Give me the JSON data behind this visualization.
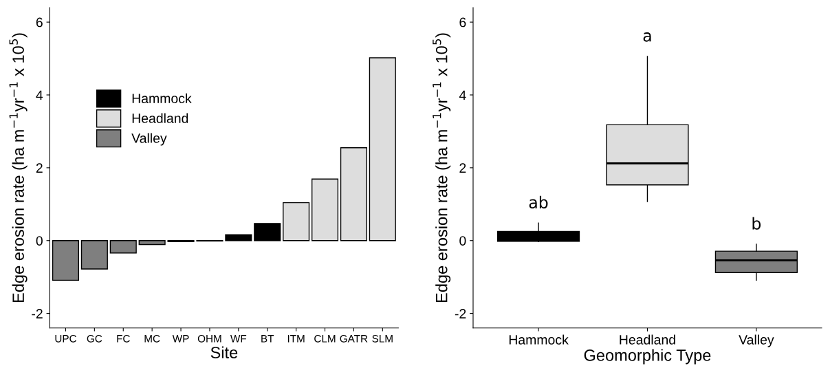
{
  "chart_data": [
    {
      "type": "bar",
      "xlabel": "Site",
      "ylabel": "Edge erosion rate (ha m$^{−1}$yr$^{−1}$ x 10$^{5}$)",
      "categories": [
        "UPC",
        "GC",
        "FC",
        "MC",
        "WP",
        "OHM",
        "WF",
        "BT",
        "ITM",
        "CLM",
        "GATR",
        "SLM"
      ],
      "series": [
        {
          "name": "Hammock",
          "color": "#000000",
          "values": [
            null,
            null,
            null,
            null,
            -0.03,
            -0.01,
            0.16,
            0.47,
            null,
            null,
            null,
            null
          ]
        },
        {
          "name": "Headland",
          "color": "#dddddd",
          "values": [
            null,
            null,
            null,
            null,
            null,
            null,
            null,
            null,
            1.04,
            1.69,
            2.55,
            5.02
          ]
        },
        {
          "name": "Valley",
          "color": "#7f7f7f",
          "values": [
            -1.09,
            -0.78,
            -0.34,
            -0.11,
            null,
            null,
            null,
            null,
            null,
            null,
            null,
            null
          ]
        }
      ],
      "ylim": [
        -2.4,
        6.4
      ],
      "yticks": [
        {
          "value": -2,
          "label": "-2"
        },
        0,
        2,
        4,
        6
      ],
      "grid": false,
      "legend": "top left"
    },
    {
      "type": "box",
      "xlabel": "Geomorphic Type",
      "ylabel": "Edge erosion rate (ha m$^{−1}$yr$^{−1}$ x 10$^{5}$)",
      "categories": [
        "Hammock",
        "Headland",
        "Valley"
      ],
      "colors": [
        "#000000",
        "#dddddd",
        "#7f7f7f"
      ],
      "boxes": [
        {
          "low": -0.03,
          "q1": -0.02,
          "median": 0.08,
          "q3": 0.25,
          "high": 0.48
        },
        {
          "low": 1.07,
          "q1": 1.53,
          "median": 2.12,
          "q3": 3.18,
          "high": 5.06
        },
        {
          "low": -1.09,
          "q1": -0.88,
          "median": -0.54,
          "q3": -0.29,
          "high": -0.1
        }
      ],
      "annotations": [
        "ab",
        "a",
        "b"
      ],
      "ylim": [
        -2.4,
        6.4
      ],
      "yticks": [
        {
          "value": -2,
          "label": "-2"
        },
        0,
        2,
        4,
        6
      ],
      "grid": false
    }
  ]
}
